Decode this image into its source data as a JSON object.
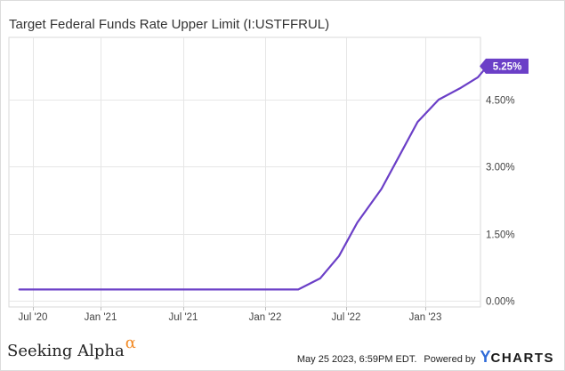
{
  "chart_data": {
    "type": "line",
    "title": "Target Federal Funds Rate Upper Limit (I:USTFFRUL)",
    "x_ticks": [
      "Jul '20",
      "Jan '21",
      "Jul '21",
      "Jan '22",
      "Jul '22",
      "Jan '23"
    ],
    "y_ticks": [
      "0.00%",
      "1.50%",
      "3.00%",
      "4.50%"
    ],
    "ylim": [
      -0.3,
      5.8
    ],
    "y_unit": "%",
    "grid": true,
    "end_label": "5.25%",
    "series": [
      {
        "color": "#6b3fc7",
        "x": [
          "2020-05-25",
          "2022-03-16",
          "2022-05-04",
          "2022-06-15",
          "2022-07-27",
          "2022-09-21",
          "2022-11-02",
          "2022-12-14",
          "2023-02-01",
          "2023-03-22",
          "2023-05-03",
          "2023-05-25"
        ],
        "y": [
          0.25,
          0.25,
          0.5,
          1.0,
          1.75,
          2.5,
          3.25,
          4.0,
          4.5,
          4.75,
          5.0,
          5.25
        ]
      }
    ]
  },
  "footer": {
    "brand_left": "Seeking Alpha",
    "brand_left_symbol": "α",
    "timestamp": "May 25 2023, 6:59PM EDT.",
    "powered_by": "Powered by",
    "brand_right_mark": "Y",
    "brand_right_rest": "CHARTS"
  }
}
